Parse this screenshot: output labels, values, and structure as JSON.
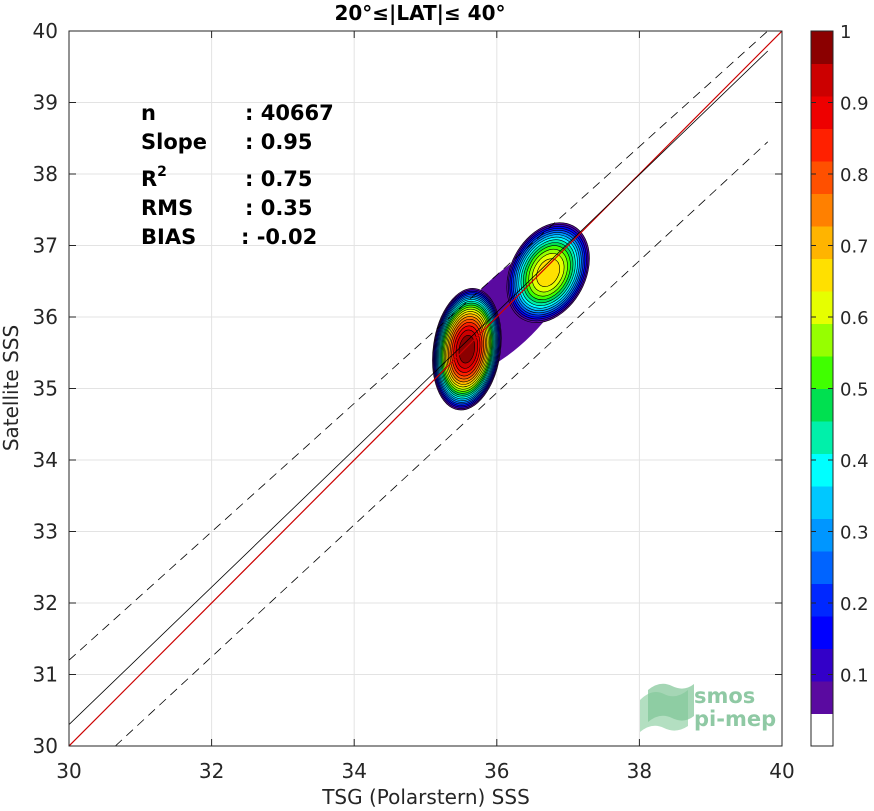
{
  "chart_data": {
    "type": "contour",
    "title": "20°≤|LAT|≤ 40°",
    "xlabel": "TSG (Polarstern) SSS",
    "ylabel": "Satellite SSS",
    "xlim": [
      30,
      40
    ],
    "ylim": [
      30,
      40
    ],
    "xticks": [
      "30",
      "32",
      "34",
      "36",
      "38",
      "40"
    ],
    "yticks": [
      "30",
      "31",
      "32",
      "33",
      "34",
      "35",
      "36",
      "37",
      "38",
      "39",
      "40"
    ],
    "grid": true,
    "stats": {
      "n_label": "n",
      "n_value": ": 40667",
      "slope_label": "Slope",
      "slope_value": ": 0.95",
      "r2_label": "R",
      "r2_sup": "2",
      "r2_value": ": 0.75",
      "rms_label": "RMS",
      "rms_value": ": 0.35",
      "bias_label": "BIAS",
      "bias_value": ": -0.02"
    },
    "lines": [
      {
        "kind": "identity",
        "color": "#cc0000",
        "slope": 1,
        "intercept": 0
      },
      {
        "kind": "regression",
        "color": "#000000",
        "x": [
          30,
          39.8
        ],
        "y": [
          30.3,
          39.72
        ]
      },
      {
        "kind": "upper-bound",
        "color": "#000000",
        "dash": true,
        "x": [
          30,
          39.8
        ],
        "y": [
          31.2,
          40.0
        ]
      },
      {
        "kind": "lower-bound",
        "color": "#000000",
        "dash": true,
        "x": [
          30.65,
          39.8
        ],
        "y": [
          30.0,
          38.45
        ]
      }
    ],
    "density_peaks": [
      {
        "x": 35.58,
        "y": 35.55,
        "max": 1.0
      },
      {
        "x": 36.72,
        "y": 36.62,
        "max": 0.66
      }
    ],
    "colorbar": {
      "range": [
        0,
        1
      ],
      "ticks": [
        "1",
        "0.9",
        "0.8",
        "0.7",
        "0.6",
        "0.5",
        "0.4",
        "0.3",
        "0.2",
        "0.1"
      ],
      "colors": [
        "#ffffff",
        "#5a0aa0",
        "#3300c8",
        "#0000ff",
        "#0028ff",
        "#0064ff",
        "#0096ff",
        "#00c8ff",
        "#00ffff",
        "#00f0aa",
        "#00e050",
        "#40ff00",
        "#96ff00",
        "#e6ff00",
        "#ffe000",
        "#ffb400",
        "#ff8000",
        "#ff5000",
        "#ff2000",
        "#ee0000",
        "#cc0000",
        "#8b0000"
      ]
    },
    "watermark": {
      "line1": "smos",
      "line2": "pi-mep",
      "color": "#8fc9a4"
    }
  }
}
